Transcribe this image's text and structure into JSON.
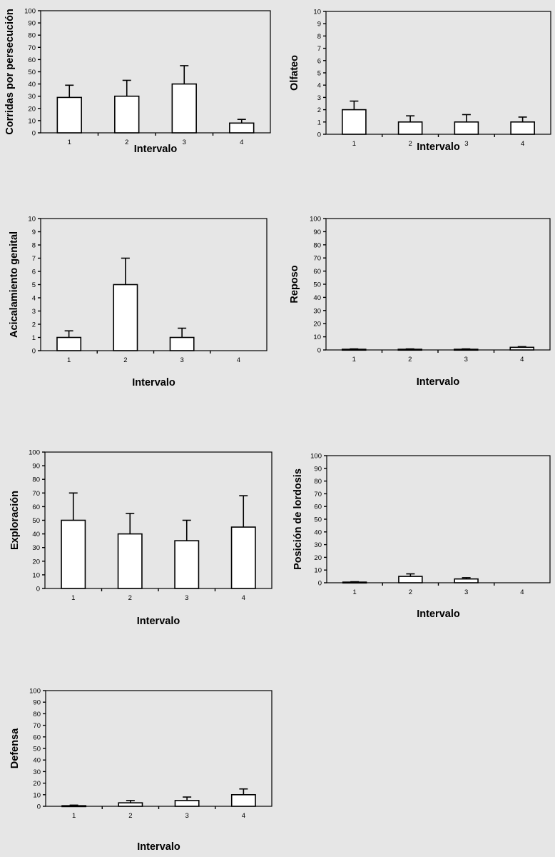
{
  "colors": {
    "background": "#e6e6e6",
    "bar_fill": "#ffffff",
    "ink": "#000000"
  },
  "chart_data": [
    {
      "type": "bar",
      "categories": [
        "1",
        "2",
        "3",
        "4"
      ],
      "values": [
        29,
        30,
        40,
        8
      ],
      "error": [
        10,
        13,
        15,
        3
      ],
      "ylim": [
        0,
        100
      ],
      "yticks": [
        0,
        10,
        20,
        30,
        40,
        50,
        60,
        70,
        80,
        90,
        100
      ],
      "xlabel": "Intervalo",
      "ylabel": "Corridas por persecución",
      "grid": false
    },
    {
      "type": "bar",
      "categories": [
        "1",
        "2",
        "3",
        "4"
      ],
      "values": [
        2,
        1,
        1,
        1
      ],
      "error": [
        0.7,
        0.5,
        0.6,
        0.4
      ],
      "ylim": [
        0,
        10
      ],
      "yticks": [
        0,
        1,
        2,
        3,
        4,
        5,
        6,
        7,
        8,
        9,
        10
      ],
      "xlabel": "Intervalo",
      "ylabel": "Olfateo",
      "grid": false
    },
    {
      "type": "bar",
      "categories": [
        "1",
        "2",
        "3",
        "4"
      ],
      "values": [
        1,
        5,
        1,
        0
      ],
      "error": [
        0.5,
        2,
        0.7,
        0
      ],
      "ylim": [
        0,
        10
      ],
      "yticks": [
        0,
        1,
        2,
        3,
        4,
        5,
        6,
        7,
        8,
        9,
        10
      ],
      "xlabel": "Intervalo",
      "ylabel": "Acicalamiento genital",
      "grid": false
    },
    {
      "type": "bar",
      "categories": [
        "1",
        "2",
        "3",
        "4"
      ],
      "values": [
        0.5,
        0.5,
        0.5,
        2
      ],
      "error": [
        0.3,
        0.3,
        0.3,
        0.5
      ],
      "ylim": [
        0,
        100
      ],
      "yticks": [
        0,
        10,
        20,
        30,
        40,
        50,
        60,
        70,
        80,
        90,
        100
      ],
      "xlabel": "Intervalo",
      "ylabel": "Reposo",
      "grid": false
    },
    {
      "type": "bar",
      "categories": [
        "1",
        "2",
        "3",
        "4"
      ],
      "values": [
        50,
        40,
        35,
        45
      ],
      "error": [
        20,
        15,
        15,
        23
      ],
      "ylim": [
        0,
        100
      ],
      "yticks": [
        0,
        10,
        20,
        30,
        40,
        50,
        60,
        70,
        80,
        90,
        100
      ],
      "xlabel": "Intervalo",
      "ylabel": "Exploración",
      "grid": false
    },
    {
      "type": "bar",
      "categories": [
        "1",
        "2",
        "3",
        "4"
      ],
      "values": [
        0.5,
        5,
        3,
        0
      ],
      "error": [
        0.3,
        2,
        1,
        0
      ],
      "ylim": [
        0,
        100
      ],
      "yticks": [
        0,
        10,
        20,
        30,
        40,
        50,
        60,
        70,
        80,
        90,
        100
      ],
      "xlabel": "Intervalo",
      "ylabel": "Posición de lordosis",
      "grid": false
    },
    {
      "type": "bar",
      "categories": [
        "1",
        "2",
        "3",
        "4"
      ],
      "values": [
        0.5,
        3,
        5,
        10
      ],
      "error": [
        0.5,
        2,
        3,
        5
      ],
      "ylim": [
        0,
        100
      ],
      "yticks": [
        0,
        10,
        20,
        30,
        40,
        50,
        60,
        70,
        80,
        90,
        100
      ],
      "xlabel": "Intervalo",
      "ylabel": "Defensa",
      "grid": false
    }
  ]
}
